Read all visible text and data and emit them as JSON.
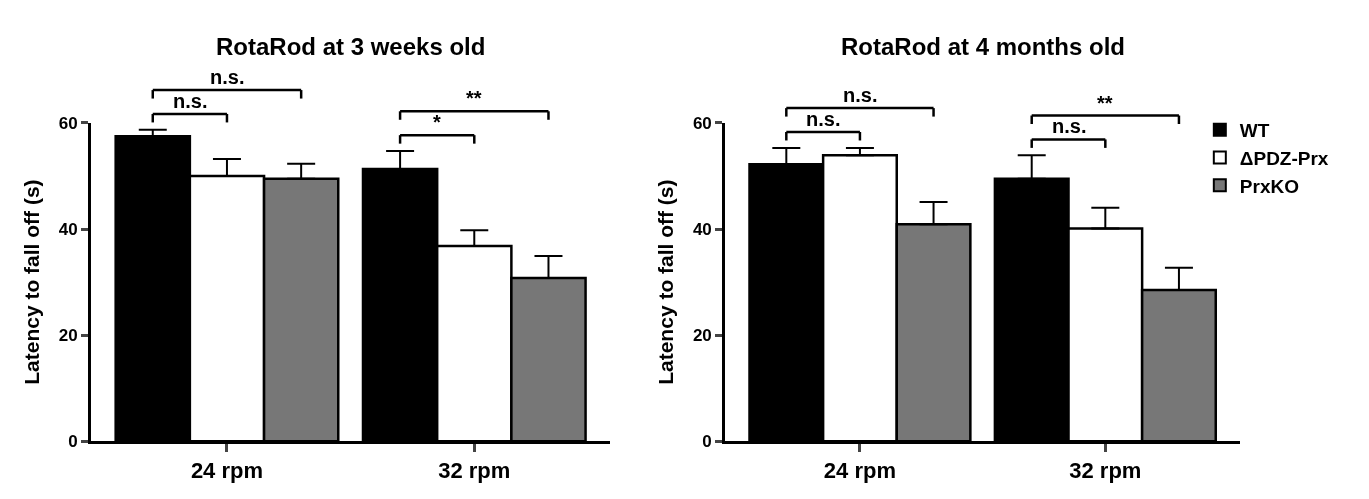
{
  "chart_data": [
    {
      "type": "bar",
      "title": "RotaRod at 3 weeks old",
      "ylabel": "Latency to fall off (s)",
      "categories": [
        "24 rpm",
        "32 rpm"
      ],
      "ylim": [
        0,
        60
      ],
      "yticks": [
        0,
        20,
        40,
        60
      ],
      "series": [
        {
          "color": "#000000",
          "values": [
            57.5,
            51.3
          ],
          "errors": [
            [
              57.5,
              58.7
            ],
            [
              51.3,
              54.7
            ]
          ]
        },
        {
          "color": "#ffffff",
          "values": [
            50.0,
            36.8
          ],
          "errors": [
            [
              50.0,
              53.2
            ],
            [
              36.8,
              39.8
            ]
          ]
        },
        {
          "color": "#777777",
          "values": [
            49.5,
            30.8
          ],
          "errors": [
            [
              49.5,
              52.3
            ],
            [
              30.8,
              34.9
            ]
          ]
        }
      ],
      "annotations": [
        "n.s.",
        "n.s.",
        "**",
        "*"
      ]
    },
    {
      "type": "bar",
      "title": "RotaRod at 4 months old",
      "ylabel": "Latency to fall off (s)",
      "categories": [
        "24 rpm",
        "32 rpm"
      ],
      "ylim": [
        0,
        60
      ],
      "yticks": [
        0,
        20,
        40,
        60
      ],
      "legend": "right",
      "series": [
        {
          "name": "WT",
          "color": "#000000",
          "values": [
            52.2,
            49.5
          ],
          "errors": [
            [
              52.2,
              55.3
            ],
            [
              49.5,
              53.9
            ]
          ]
        },
        {
          "name": "ΔPDZ-Prx",
          "color": "#ffffff",
          "values": [
            53.9,
            40.1
          ],
          "errors": [
            [
              53.9,
              55.3
            ],
            [
              40.1,
              44.0
            ]
          ]
        },
        {
          "name": "PrxKO",
          "color": "#777777",
          "values": [
            40.9,
            28.5
          ],
          "errors": [
            [
              40.9,
              45.1
            ],
            [
              28.5,
              32.7
            ]
          ]
        }
      ],
      "annotations": [
        "n.s.",
        "n.s.",
        "**",
        "n.s."
      ]
    }
  ]
}
